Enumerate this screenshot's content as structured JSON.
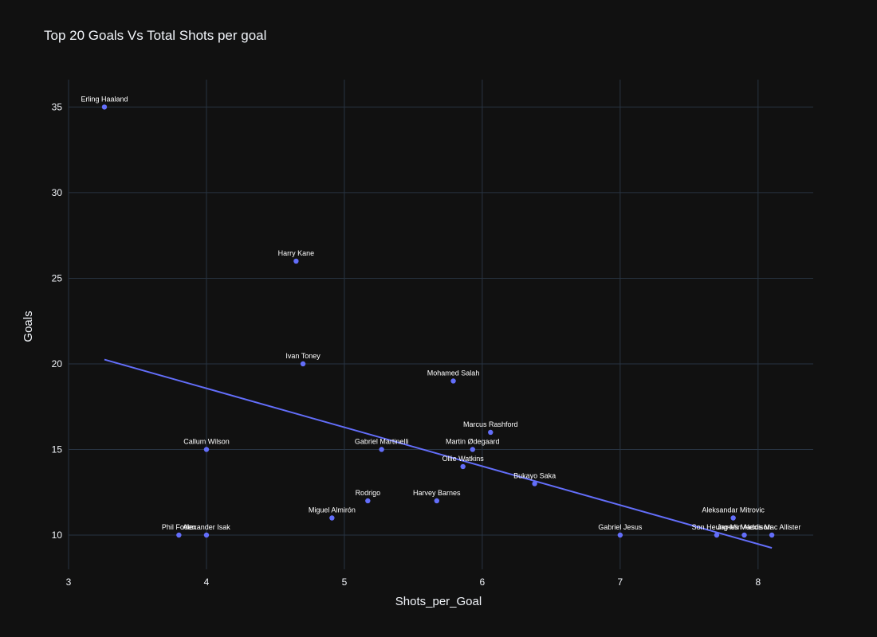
{
  "chart_data": {
    "type": "scatter",
    "title": "Top 20 Goals Vs Total Shots per goal",
    "xlabel": "Shots_per_Goal",
    "ylabel": "Goals",
    "xlim": [
      3,
      8.4
    ],
    "ylim": [
      8,
      36.6
    ],
    "xticks": [
      3,
      4,
      5,
      6,
      7,
      8
    ],
    "yticks": [
      10,
      15,
      20,
      25,
      30,
      35
    ],
    "grid": true,
    "marker_color": "#636efa",
    "trendline": {
      "x": [
        3.26,
        8.1
      ],
      "y": [
        20.25,
        9.25
      ]
    },
    "points": [
      {
        "name": "Erling Haaland",
        "x": 3.26,
        "y": 35
      },
      {
        "name": "Harry Kane",
        "x": 4.65,
        "y": 26
      },
      {
        "name": "Ivan Toney",
        "x": 4.7,
        "y": 20
      },
      {
        "name": "Mohamed Salah",
        "x": 5.79,
        "y": 19
      },
      {
        "name": "Marcus Rashford",
        "x": 6.06,
        "y": 16
      },
      {
        "name": "Callum Wilson",
        "x": 4.0,
        "y": 15
      },
      {
        "name": "Gabriel Martinelli",
        "x": 5.27,
        "y": 15
      },
      {
        "name": "Martin Ødegaard",
        "x": 5.93,
        "y": 15
      },
      {
        "name": "Ollie Watkins",
        "x": 5.86,
        "y": 14
      },
      {
        "name": "Bukayo Saka",
        "x": 6.38,
        "y": 13
      },
      {
        "name": "Rodrigo",
        "x": 5.17,
        "y": 12
      },
      {
        "name": "Harvey Barnes",
        "x": 5.67,
        "y": 12
      },
      {
        "name": "Miguel Almirón",
        "x": 4.91,
        "y": 11
      },
      {
        "name": "Aleksandar Mitrovic",
        "x": 7.82,
        "y": 11
      },
      {
        "name": "Phil Foden",
        "x": 3.8,
        "y": 10
      },
      {
        "name": "Alexander Isak",
        "x": 4.0,
        "y": 10
      },
      {
        "name": "Gabriel Jesus",
        "x": 7.0,
        "y": 10
      },
      {
        "name": "Son Heung-Min",
        "x": 7.7,
        "y": 10
      },
      {
        "name": "James Maddison",
        "x": 7.9,
        "y": 10
      },
      {
        "name": "Alexis Mac Allister",
        "x": 8.1,
        "y": 10
      }
    ]
  }
}
